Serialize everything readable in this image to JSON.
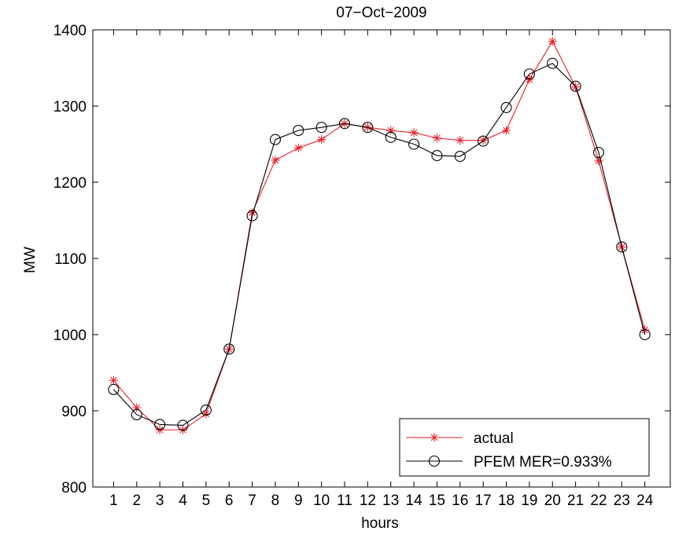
{
  "chart_data": {
    "type": "line",
    "title": "07−Oct−2009",
    "xlabel": "hours",
    "ylabel": "MW",
    "xlim": [
      0.1,
      25.1
    ],
    "ylim": [
      800,
      1400
    ],
    "xticks": [
      1,
      2,
      3,
      4,
      5,
      6,
      7,
      8,
      9,
      10,
      11,
      12,
      13,
      14,
      15,
      16,
      17,
      18,
      19,
      20,
      21,
      22,
      23,
      24
    ],
    "yticks": [
      800,
      900,
      1000,
      1100,
      1200,
      1300,
      1400
    ],
    "grid": false,
    "legend_position": "bottom-right",
    "x": [
      1,
      2,
      3,
      4,
      5,
      6,
      7,
      8,
      9,
      10,
      11,
      12,
      13,
      14,
      15,
      16,
      17,
      18,
      19,
      20,
      21,
      22,
      23,
      24
    ],
    "series": [
      {
        "name": "actual",
        "color": "#e8202a",
        "marker": "asterisk",
        "values": [
          940,
          904,
          875,
          875,
          896,
          981,
          1160,
          1229,
          1245,
          1256,
          1277,
          1272,
          1268,
          1265,
          1258,
          1255,
          1255,
          1268,
          1335,
          1385,
          1325,
          1228,
          1115,
          1006
        ]
      },
      {
        "name": "PFEM  MER=0.933%",
        "color": "#000000",
        "marker": "circle",
        "values": [
          928,
          895,
          882,
          881,
          901,
          981,
          1156,
          1256,
          1268,
          1272,
          1277,
          1272,
          1259,
          1250,
          1235,
          1234,
          1254,
          1298,
          1342,
          1356,
          1326,
          1239,
          1115,
          1000
        ]
      }
    ]
  }
}
